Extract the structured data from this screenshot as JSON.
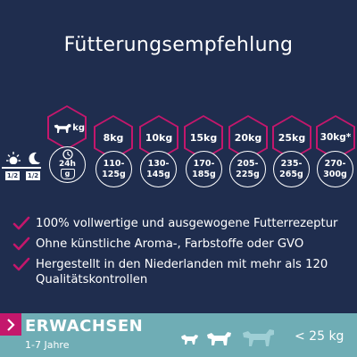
{
  "title": "Fütterungsempfehlung",
  "feeding": {
    "header_unit": "kg",
    "age_label": "24h",
    "unit_label": "g",
    "meals": [
      "1/2",
      "1/2"
    ],
    "weights": [
      "8kg",
      "10kg",
      "15kg",
      "20kg",
      "25kg",
      "30kg*"
    ],
    "amounts": [
      [
        "110-",
        "125g"
      ],
      [
        "130-",
        "145g"
      ],
      [
        "170-",
        "185g"
      ],
      [
        "205-",
        "225g"
      ],
      [
        "235-",
        "265g"
      ],
      [
        "270-",
        "300g"
      ]
    ]
  },
  "benefits": [
    "100% vollwertige und ausgewogene Futterrezeptur",
    "Ohne künstliche Aroma-, Farbstoffe oder GVO",
    "Hergestellt in den Niederlanden mit mehr als 120 Qualitätskontrollen"
  ],
  "banner": {
    "stage": "ERWACHSEN",
    "age_range": "1-7 Jahre",
    "weight_limit": "< 25 kg"
  },
  "colors": {
    "background": "#1f2d4e",
    "accent": "#c4176c",
    "banner": "#6fadb5",
    "text": "#ffffff"
  },
  "icons": [
    "dog-icon",
    "clock-icon",
    "bowl-icon",
    "sun-icon",
    "moon-icon",
    "checkmark-icon",
    "chevron-right-icon"
  ]
}
